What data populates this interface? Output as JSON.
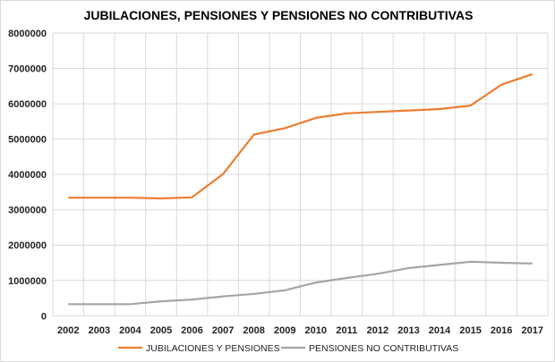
{
  "chart_data": {
    "type": "line",
    "title": "JUBILACIONES, PENSIONES Y PENSIONES NO CONTRIBUTIVAS",
    "xlabel": "",
    "ylabel": "",
    "categories": [
      "2002",
      "2003",
      "2004",
      "2005",
      "2006",
      "2007",
      "2008",
      "2009",
      "2010",
      "2011",
      "2012",
      "2013",
      "2014",
      "2015",
      "2016",
      "2017"
    ],
    "ylim": [
      0,
      8000000
    ],
    "yticks": [
      0,
      1000000,
      2000000,
      3000000,
      4000000,
      5000000,
      6000000,
      7000000,
      8000000
    ],
    "ytick_labels": [
      "0",
      "1000000",
      "2000000",
      "3000000",
      "4000000",
      "5000000",
      "6000000",
      "7000000",
      "8000000"
    ],
    "grid": true,
    "legend_position": "bottom",
    "series": [
      {
        "name": "JUBILACIONES Y PENSIONES",
        "color": "#ED7D31",
        "values": [
          3340000,
          3340000,
          3340000,
          3320000,
          3350000,
          4010000,
          5130000,
          5310000,
          5600000,
          5730000,
          5770000,
          5810000,
          5850000,
          5950000,
          6540000,
          6840000
        ]
      },
      {
        "name": "PENSIONES NO CONTRIBUTIVAS",
        "color": "#A5A5A5",
        "values": [
          330000,
          330000,
          330000,
          410000,
          460000,
          550000,
          620000,
          720000,
          940000,
          1070000,
          1190000,
          1350000,
          1440000,
          1530000,
          1500000,
          1480000
        ]
      }
    ]
  }
}
